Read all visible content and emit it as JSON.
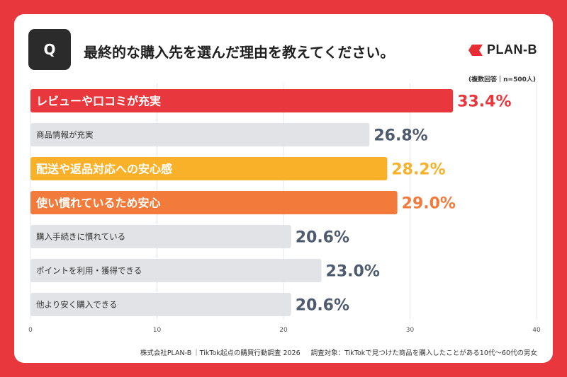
{
  "header": {
    "q_label": "Q",
    "question": "最終的な購入先を選んだ理由を教えてください。",
    "brand": "PLAN-B",
    "sample_note": "(複数回答｜n=500人)"
  },
  "footer": {
    "company": "株式会社PLAN-B",
    "survey": "｜TikTok起点の購買行動調査 2026",
    "target": "調査対象：TikTokで見つけた商品を購入したことがある10代〜60代の男女"
  },
  "colors": {
    "background": "#E8383D",
    "red": "#E8383D",
    "yellow": "#F9B12A",
    "orange": "#F27A3A",
    "gray": "#E2E3E6",
    "value_dark": "#4E5B6E",
    "brand_red": "#E52D33"
  },
  "chart_data": {
    "type": "bar",
    "orientation": "horizontal",
    "categories": [
      "レビューや口コミが充実",
      "商品情報が充実",
      "配送や返品対応への安心感",
      "使い慣れているため安心",
      "購入手続きに慣れている",
      "ポイントを利用・獲得できる",
      "他より安く購入できる"
    ],
    "values": [
      33.4,
      26.8,
      28.2,
      29.0,
      20.6,
      23.0,
      20.6
    ],
    "value_labels": [
      "33.4%",
      "26.8%",
      "28.2%",
      "29.0%",
      "20.6%",
      "23.0%",
      "20.6%"
    ],
    "highlight": [
      "red",
      "gray",
      "yellow",
      "orange",
      "gray",
      "gray",
      "gray"
    ],
    "xlim": [
      0,
      40
    ],
    "xticks": [
      0,
      10,
      20,
      30,
      40
    ],
    "grid": true
  }
}
